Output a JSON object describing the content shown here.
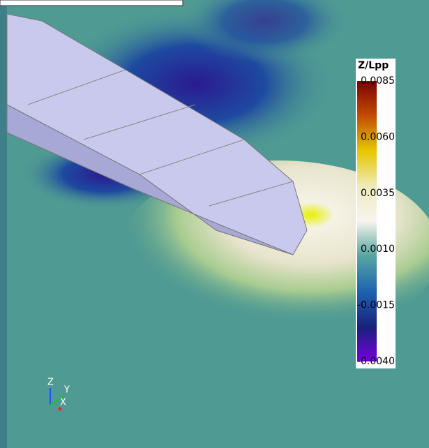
{
  "colorbar": {
    "title": "Z/Lpp",
    "ticks": [
      "0.0085",
      "0.0060",
      "0.0035",
      "0.0010",
      "-0.0015",
      "-0.0040"
    ]
  },
  "axes_triad": {
    "z": "Z",
    "y": "Y",
    "x": "X"
  }
}
